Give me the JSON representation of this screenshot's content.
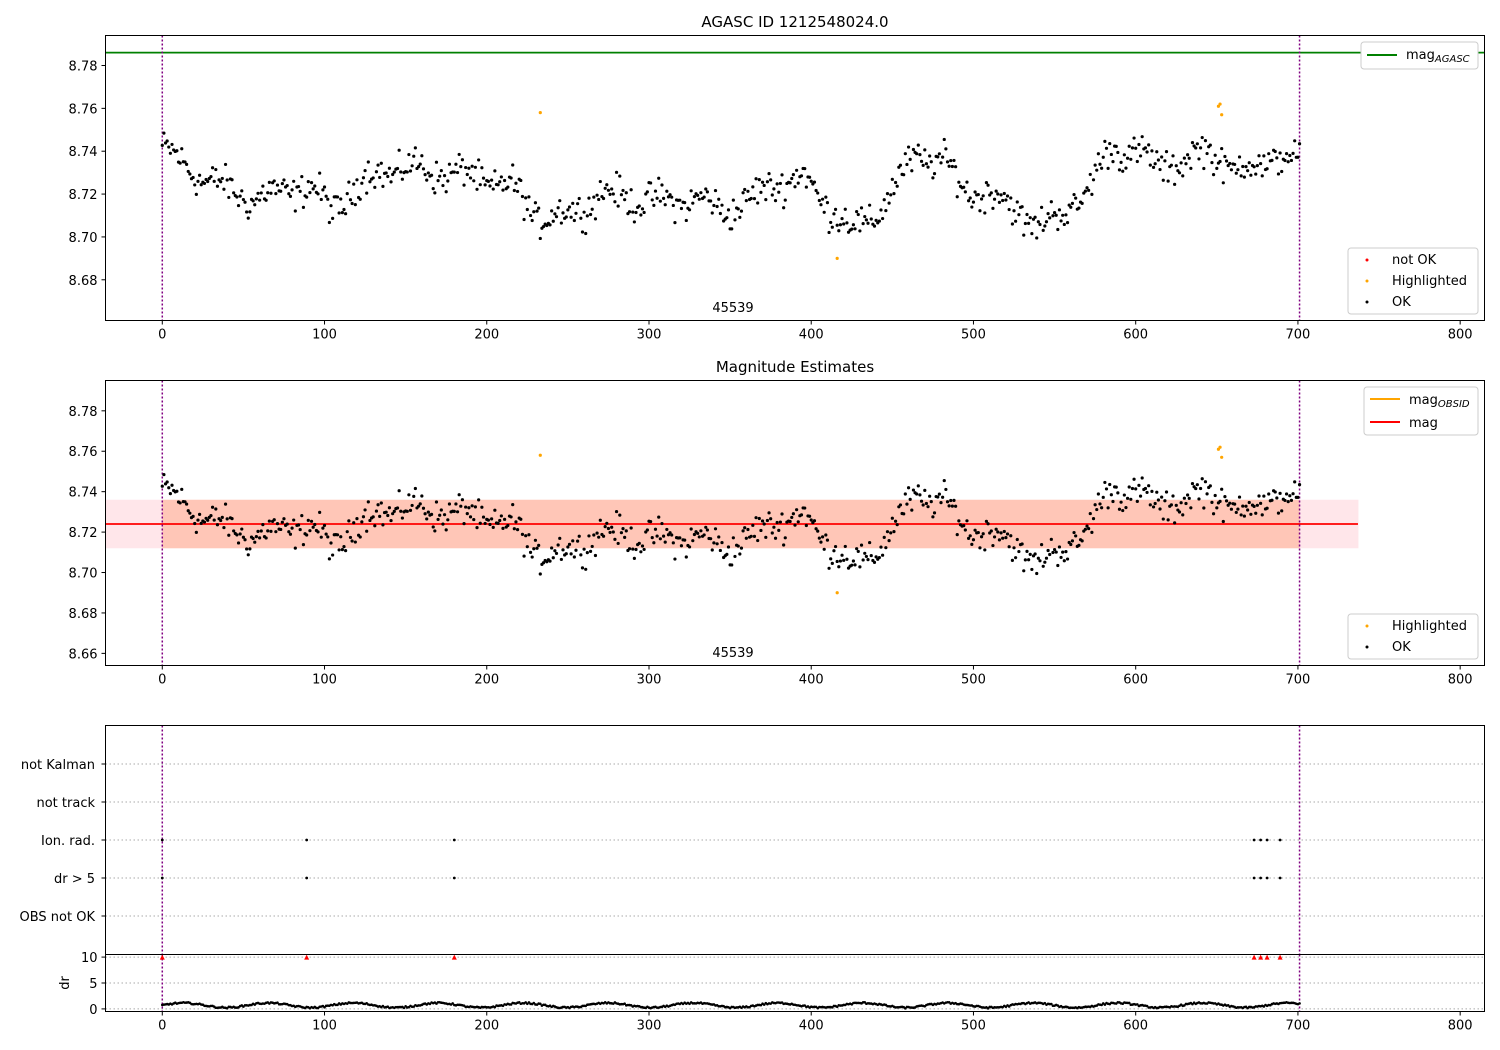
{
  "figure": {
    "title_top": "AGASC ID 1212548024.0",
    "title_mid": "Magnitude Estimates",
    "obsid_label": "45539"
  },
  "colors": {
    "ok": "#000000",
    "highlighted": "#ffa500",
    "not_ok": "#ff0000",
    "mag_agasc": "#008000",
    "mag": "#ff0000",
    "mag_obsid": "#ffa500",
    "band_outer": "#ffc0cb",
    "band_inner": "#ffa07a",
    "boundary": "#800080"
  },
  "legends": {
    "top_line": {
      "base": "mag",
      "sub": "AGASC"
    },
    "top_points": [
      "not OK",
      "Highlighted",
      "OK"
    ],
    "mid_lines": [
      {
        "base": "mag",
        "sub": "OBSID"
      },
      {
        "base": "mag",
        "sub": ""
      }
    ],
    "mid_points": [
      "Highlighted",
      "OK"
    ]
  },
  "chart_data": [
    {
      "type": "scatter",
      "title": "AGASC ID 1212548024.0",
      "annotation": "45539",
      "xlim": [
        -35,
        815
      ],
      "ylim": [
        8.661,
        8.794
      ],
      "xticks": [
        "0",
        "100",
        "200",
        "300",
        "400",
        "500",
        "600",
        "700",
        "800"
      ],
      "yticks": [
        "8.68",
        "8.70",
        "8.72",
        "8.74",
        "8.76",
        "8.78"
      ],
      "mag_agasc": 8.786,
      "obs_boundaries": [
        0,
        701
      ],
      "series": [
        {
          "name": "not OK",
          "points": []
        },
        {
          "name": "Highlighted",
          "points": [
            [
              233,
              8.758
            ],
            [
              416,
              8.69
            ],
            [
              651,
              8.761
            ],
            [
              652,
              8.762
            ],
            [
              653,
              8.757
            ]
          ]
        },
        {
          "name": "OK",
          "points": "~700 samples, frame 0-701, magnitudes 8.695-8.755 (see generator)"
        }
      ],
      "legend": [
        "top-right",
        "bottom-right"
      ]
    },
    {
      "type": "scatter",
      "title": "Magnitude Estimates",
      "annotation": "45539",
      "xlim": [
        -35,
        815
      ],
      "ylim": [
        8.654,
        8.795
      ],
      "xticks": [
        "0",
        "100",
        "200",
        "300",
        "400",
        "500",
        "600",
        "700",
        "800"
      ],
      "yticks": [
        "8.66",
        "8.68",
        "8.70",
        "8.72",
        "8.74",
        "8.76",
        "8.78"
      ],
      "mag": 8.724,
      "mag_obsid": 8.724,
      "band": [
        8.712,
        8.736
      ],
      "band_x_extent": [
        0,
        737
      ],
      "series": [
        {
          "name": "Highlighted",
          "points": [
            [
              233,
              8.758
            ],
            [
              416,
              8.69
            ],
            [
              651,
              8.761
            ],
            [
              652,
              8.762
            ],
            [
              653,
              8.757
            ]
          ]
        },
        {
          "name": "OK",
          "points": "same as top panel"
        }
      ],
      "legend": [
        "top-right",
        "bottom-right"
      ]
    },
    {
      "type": "scatter",
      "flags": [
        "not Kalman",
        "not track",
        "Ion. rad.",
        "dr > 5",
        "OBS not OK"
      ],
      "flag_frames": {
        "Ion. rad.": [
          0,
          89,
          180,
          673,
          677,
          681,
          689
        ],
        "dr > 5": [
          0,
          89,
          180,
          673,
          677,
          681,
          689
        ]
      }
    },
    {
      "type": "scatter",
      "ylabel": "dr",
      "ylim": [
        -0.5,
        10.5
      ],
      "yticks": [
        "0",
        "5",
        "10"
      ],
      "clipped_markers_at_10": [
        0,
        89,
        180,
        673,
        677,
        681,
        689
      ],
      "dr_range": [
        0.1,
        1.3
      ]
    }
  ]
}
